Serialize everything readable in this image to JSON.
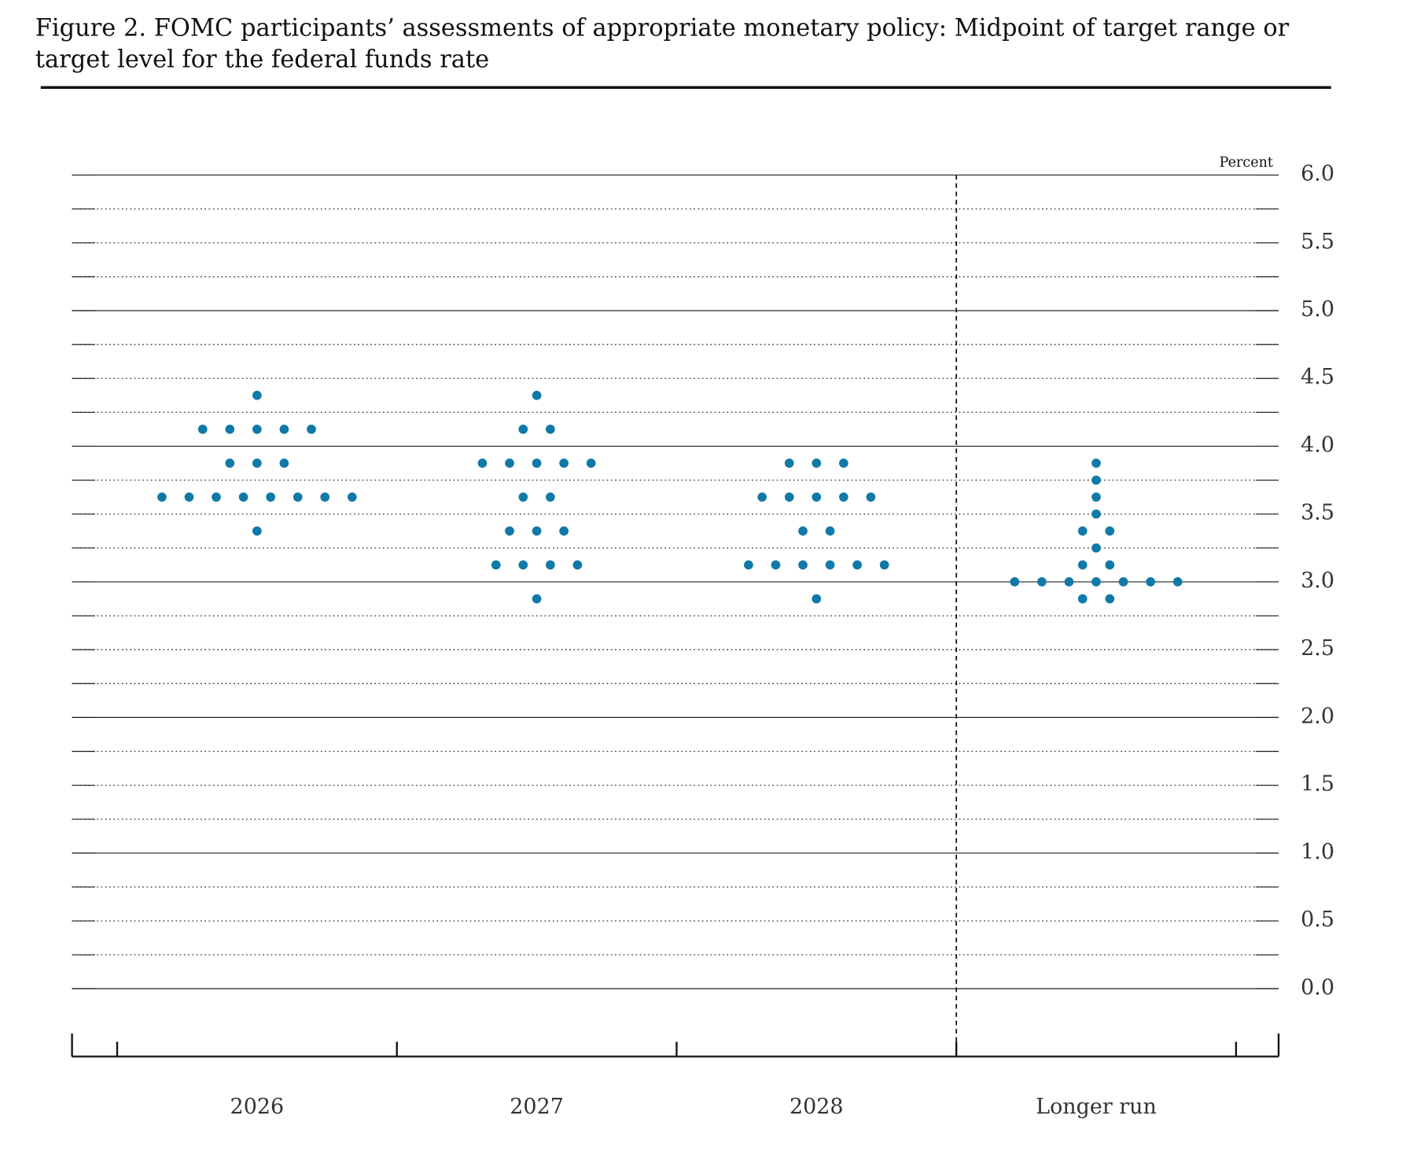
{
  "chart_data": {
    "type": "dot",
    "title": "Figure 2. FOMC participants’ assessments of appropriate monetary policy: Midpoint of target range or target level for the federal funds rate",
    "y_label": "Percent",
    "categories": [
      "2026",
      "2027",
      "2028",
      "Longer run"
    ],
    "color": "#0f7aa8",
    "dots": [
      [
        {
          "value": 4.375,
          "count": 1
        },
        {
          "value": 4.125,
          "count": 5
        },
        {
          "value": 3.875,
          "count": 3
        },
        {
          "value": 3.625,
          "count": 8
        },
        {
          "value": 3.375,
          "count": 1
        }
      ],
      [
        {
          "value": 4.375,
          "count": 1
        },
        {
          "value": 4.125,
          "count": 2
        },
        {
          "value": 3.875,
          "count": 5
        },
        {
          "value": 3.625,
          "count": 2
        },
        {
          "value": 3.375,
          "count": 3
        },
        {
          "value": 3.125,
          "count": 4
        },
        {
          "value": 2.875,
          "count": 1
        }
      ],
      [
        {
          "value": 3.875,
          "count": 3
        },
        {
          "value": 3.625,
          "count": 5
        },
        {
          "value": 3.375,
          "count": 2
        },
        {
          "value": 3.125,
          "count": 6
        },
        {
          "value": 2.875,
          "count": 1
        }
      ],
      [
        {
          "value": 3.875,
          "count": 1
        },
        {
          "value": 3.75,
          "count": 1
        },
        {
          "value": 3.625,
          "count": 1
        },
        {
          "value": 3.5,
          "count": 1
        },
        {
          "value": 3.375,
          "count": 2
        },
        {
          "value": 3.25,
          "count": 1
        },
        {
          "value": 3.125,
          "count": 2
        },
        {
          "value": 3.0,
          "count": 7
        },
        {
          "value": 2.875,
          "count": 2
        }
      ]
    ],
    "ylim": [
      -0.5,
      6.0
    ],
    "yticks": [
      {
        "value": 0,
        "label": "0.0"
      },
      0.5,
      {
        "value": 1,
        "label": "1.0"
      },
      1.5,
      {
        "value": 2,
        "label": "2.0"
      },
      2.5,
      {
        "value": 3,
        "label": "3.0"
      },
      3.5,
      {
        "value": 4,
        "label": "4.0"
      },
      4.5,
      {
        "value": 5,
        "label": "5.0"
      },
      5.5,
      {
        "value": 6,
        "label": "6.0"
      }
    ],
    "minor_yticks": [
      0.25,
      0.75,
      1.25,
      1.75,
      2.25,
      2.75,
      3.25,
      3.75,
      4.25,
      4.75,
      5.25,
      5.75
    ],
    "grid": true
  }
}
